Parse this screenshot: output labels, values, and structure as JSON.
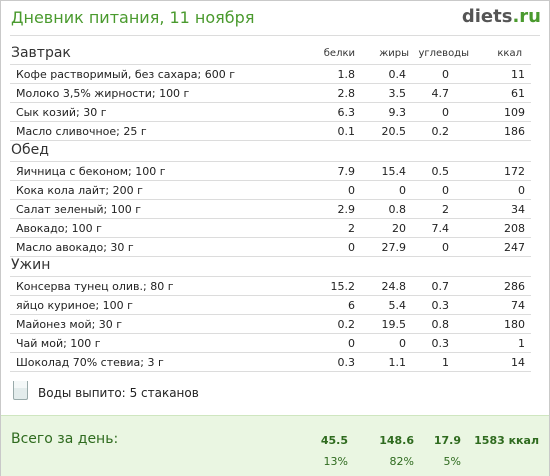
{
  "header": {
    "title": "Дневник питания, 11 ноября",
    "logo_main": "diets",
    "logo_suffix": ".ru"
  },
  "columns": [
    "белки",
    "жиры",
    "углеводы",
    "ккал"
  ],
  "meals": [
    {
      "title": "Завтрак",
      "rows": [
        {
          "name": "Кофе растворимый, без сахара; 600 г",
          "protein": "1.8",
          "fat": "0.4",
          "carbs": "0",
          "kcal": "11"
        },
        {
          "name": "Молоко 3,5% жирности; 100 г",
          "protein": "2.8",
          "fat": "3.5",
          "carbs": "4.7",
          "kcal": "61"
        },
        {
          "name": "Сык козий; 30 г",
          "protein": "6.3",
          "fat": "9.3",
          "carbs": "0",
          "kcal": "109"
        },
        {
          "name": "Масло сливочное; 25 г",
          "protein": "0.1",
          "fat": "20.5",
          "carbs": "0.2",
          "kcal": "186"
        }
      ]
    },
    {
      "title": "Обед",
      "rows": [
        {
          "name": "Яичница с беконом; 100 г",
          "protein": "7.9",
          "fat": "15.4",
          "carbs": "0.5",
          "kcal": "172"
        },
        {
          "name": "Кока кола лайт; 200 г",
          "protein": "0",
          "fat": "0",
          "carbs": "0",
          "kcal": "0"
        },
        {
          "name": "Салат зеленый; 100 г",
          "protein": "2.9",
          "fat": "0.8",
          "carbs": "2",
          "kcal": "34"
        },
        {
          "name": "Авокадо; 100 г",
          "protein": "2",
          "fat": "20",
          "carbs": "7.4",
          "kcal": "208"
        },
        {
          "name": "Масло авокадо; 30 г",
          "protein": "0",
          "fat": "27.9",
          "carbs": "0",
          "kcal": "247"
        }
      ]
    },
    {
      "title": "Ужин",
      "rows": [
        {
          "name": "Консерва тунец олив.; 80 г",
          "protein": "15.2",
          "fat": "24.8",
          "carbs": "0.7",
          "kcal": "286"
        },
        {
          "name": "яйцо куриное; 100 г",
          "protein": "6",
          "fat": "5.4",
          "carbs": "0.3",
          "kcal": "74"
        },
        {
          "name": "Майонез мой; 30 г",
          "protein": "0.2",
          "fat": "19.5",
          "carbs": "0.8",
          "kcal": "180"
        },
        {
          "name": "Чай мой; 100 г",
          "protein": "0",
          "fat": "0",
          "carbs": "0.3",
          "kcal": "1"
        },
        {
          "name": "Шоколад 70% стевиа; 3 г",
          "protein": "0.3",
          "fat": "1.1",
          "carbs": "1",
          "kcal": "14"
        }
      ]
    }
  ],
  "water": {
    "label": "Воды выпито:",
    "value": "5 стаканов"
  },
  "total": {
    "label": "Всего за день:",
    "protein": "45.5",
    "fat": "148.6",
    "carbs": "17.9",
    "kcal": "1583 ккал",
    "protein_pct": "13%",
    "fat_pct": "82%",
    "carbs_pct": "5%"
  },
  "colors": {
    "accent": "#4a9a2e",
    "total_bg": "#eaf6e2"
  }
}
